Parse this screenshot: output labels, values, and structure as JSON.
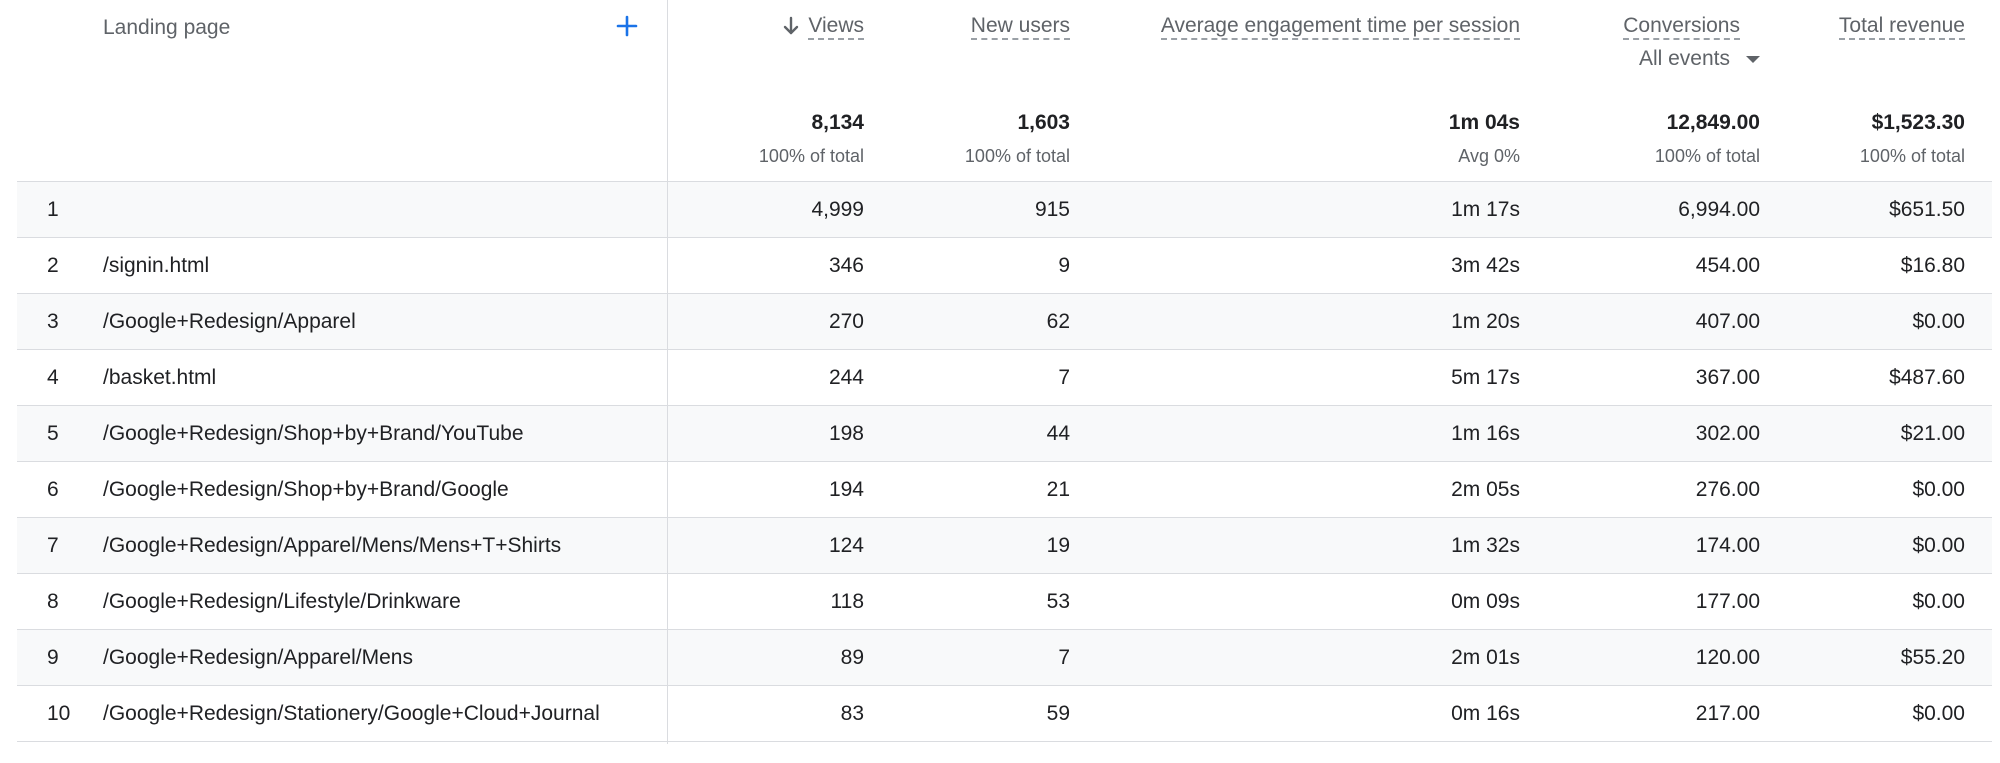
{
  "header": {
    "landing_page": "Landing page",
    "views": "Views",
    "new_users": "New users",
    "avg_engagement": "Average engagement time per session",
    "conversions": "Conversions",
    "conversions_filter": "All events",
    "total_revenue": "Total revenue",
    "add_icon": "plus-icon",
    "sort_icon": "arrow-down-icon",
    "accent_color": "#1a73e8"
  },
  "totals": {
    "views": "8,134",
    "views_sub": "100% of total",
    "new_users": "1,603",
    "new_users_sub": "100% of total",
    "avg_engagement": "1m 04s",
    "avg_engagement_sub": "Avg 0%",
    "conversions": "12,849.00",
    "conversions_sub": "100% of total",
    "total_revenue": "$1,523.30",
    "total_revenue_sub": "100% of total"
  },
  "rows": [
    {
      "idx": "1",
      "page": "",
      "views": "4,999",
      "new_users": "915",
      "avg_engagement": "1m 17s",
      "conversions": "6,994.00",
      "revenue": "$651.50"
    },
    {
      "idx": "2",
      "page": "/signin.html",
      "views": "346",
      "new_users": "9",
      "avg_engagement": "3m 42s",
      "conversions": "454.00",
      "revenue": "$16.80"
    },
    {
      "idx": "3",
      "page": "/Google+Redesign/Apparel",
      "views": "270",
      "new_users": "62",
      "avg_engagement": "1m 20s",
      "conversions": "407.00",
      "revenue": "$0.00"
    },
    {
      "idx": "4",
      "page": "/basket.html",
      "views": "244",
      "new_users": "7",
      "avg_engagement": "5m 17s",
      "conversions": "367.00",
      "revenue": "$487.60"
    },
    {
      "idx": "5",
      "page": "/Google+Redesign/Shop+by+Brand/YouTube",
      "views": "198",
      "new_users": "44",
      "avg_engagement": "1m 16s",
      "conversions": "302.00",
      "revenue": "$21.00"
    },
    {
      "idx": "6",
      "page": "/Google+Redesign/Shop+by+Brand/Google",
      "views": "194",
      "new_users": "21",
      "avg_engagement": "2m 05s",
      "conversions": "276.00",
      "revenue": "$0.00"
    },
    {
      "idx": "7",
      "page": "/Google+Redesign/Apparel/Mens/Mens+T+Shirts",
      "views": "124",
      "new_users": "19",
      "avg_engagement": "1m 32s",
      "conversions": "174.00",
      "revenue": "$0.00"
    },
    {
      "idx": "8",
      "page": "/Google+Redesign/Lifestyle/Drinkware",
      "views": "118",
      "new_users": "53",
      "avg_engagement": "0m 09s",
      "conversions": "177.00",
      "revenue": "$0.00"
    },
    {
      "idx": "9",
      "page": "/Google+Redesign/Apparel/Mens",
      "views": "89",
      "new_users": "7",
      "avg_engagement": "2m 01s",
      "conversions": "120.00",
      "revenue": "$55.20"
    },
    {
      "idx": "10",
      "page": "/Google+Redesign/Stationery/Google+Cloud+Journal",
      "views": "83",
      "new_users": "59",
      "avg_engagement": "0m 16s",
      "conversions": "217.00",
      "revenue": "$0.00"
    }
  ]
}
